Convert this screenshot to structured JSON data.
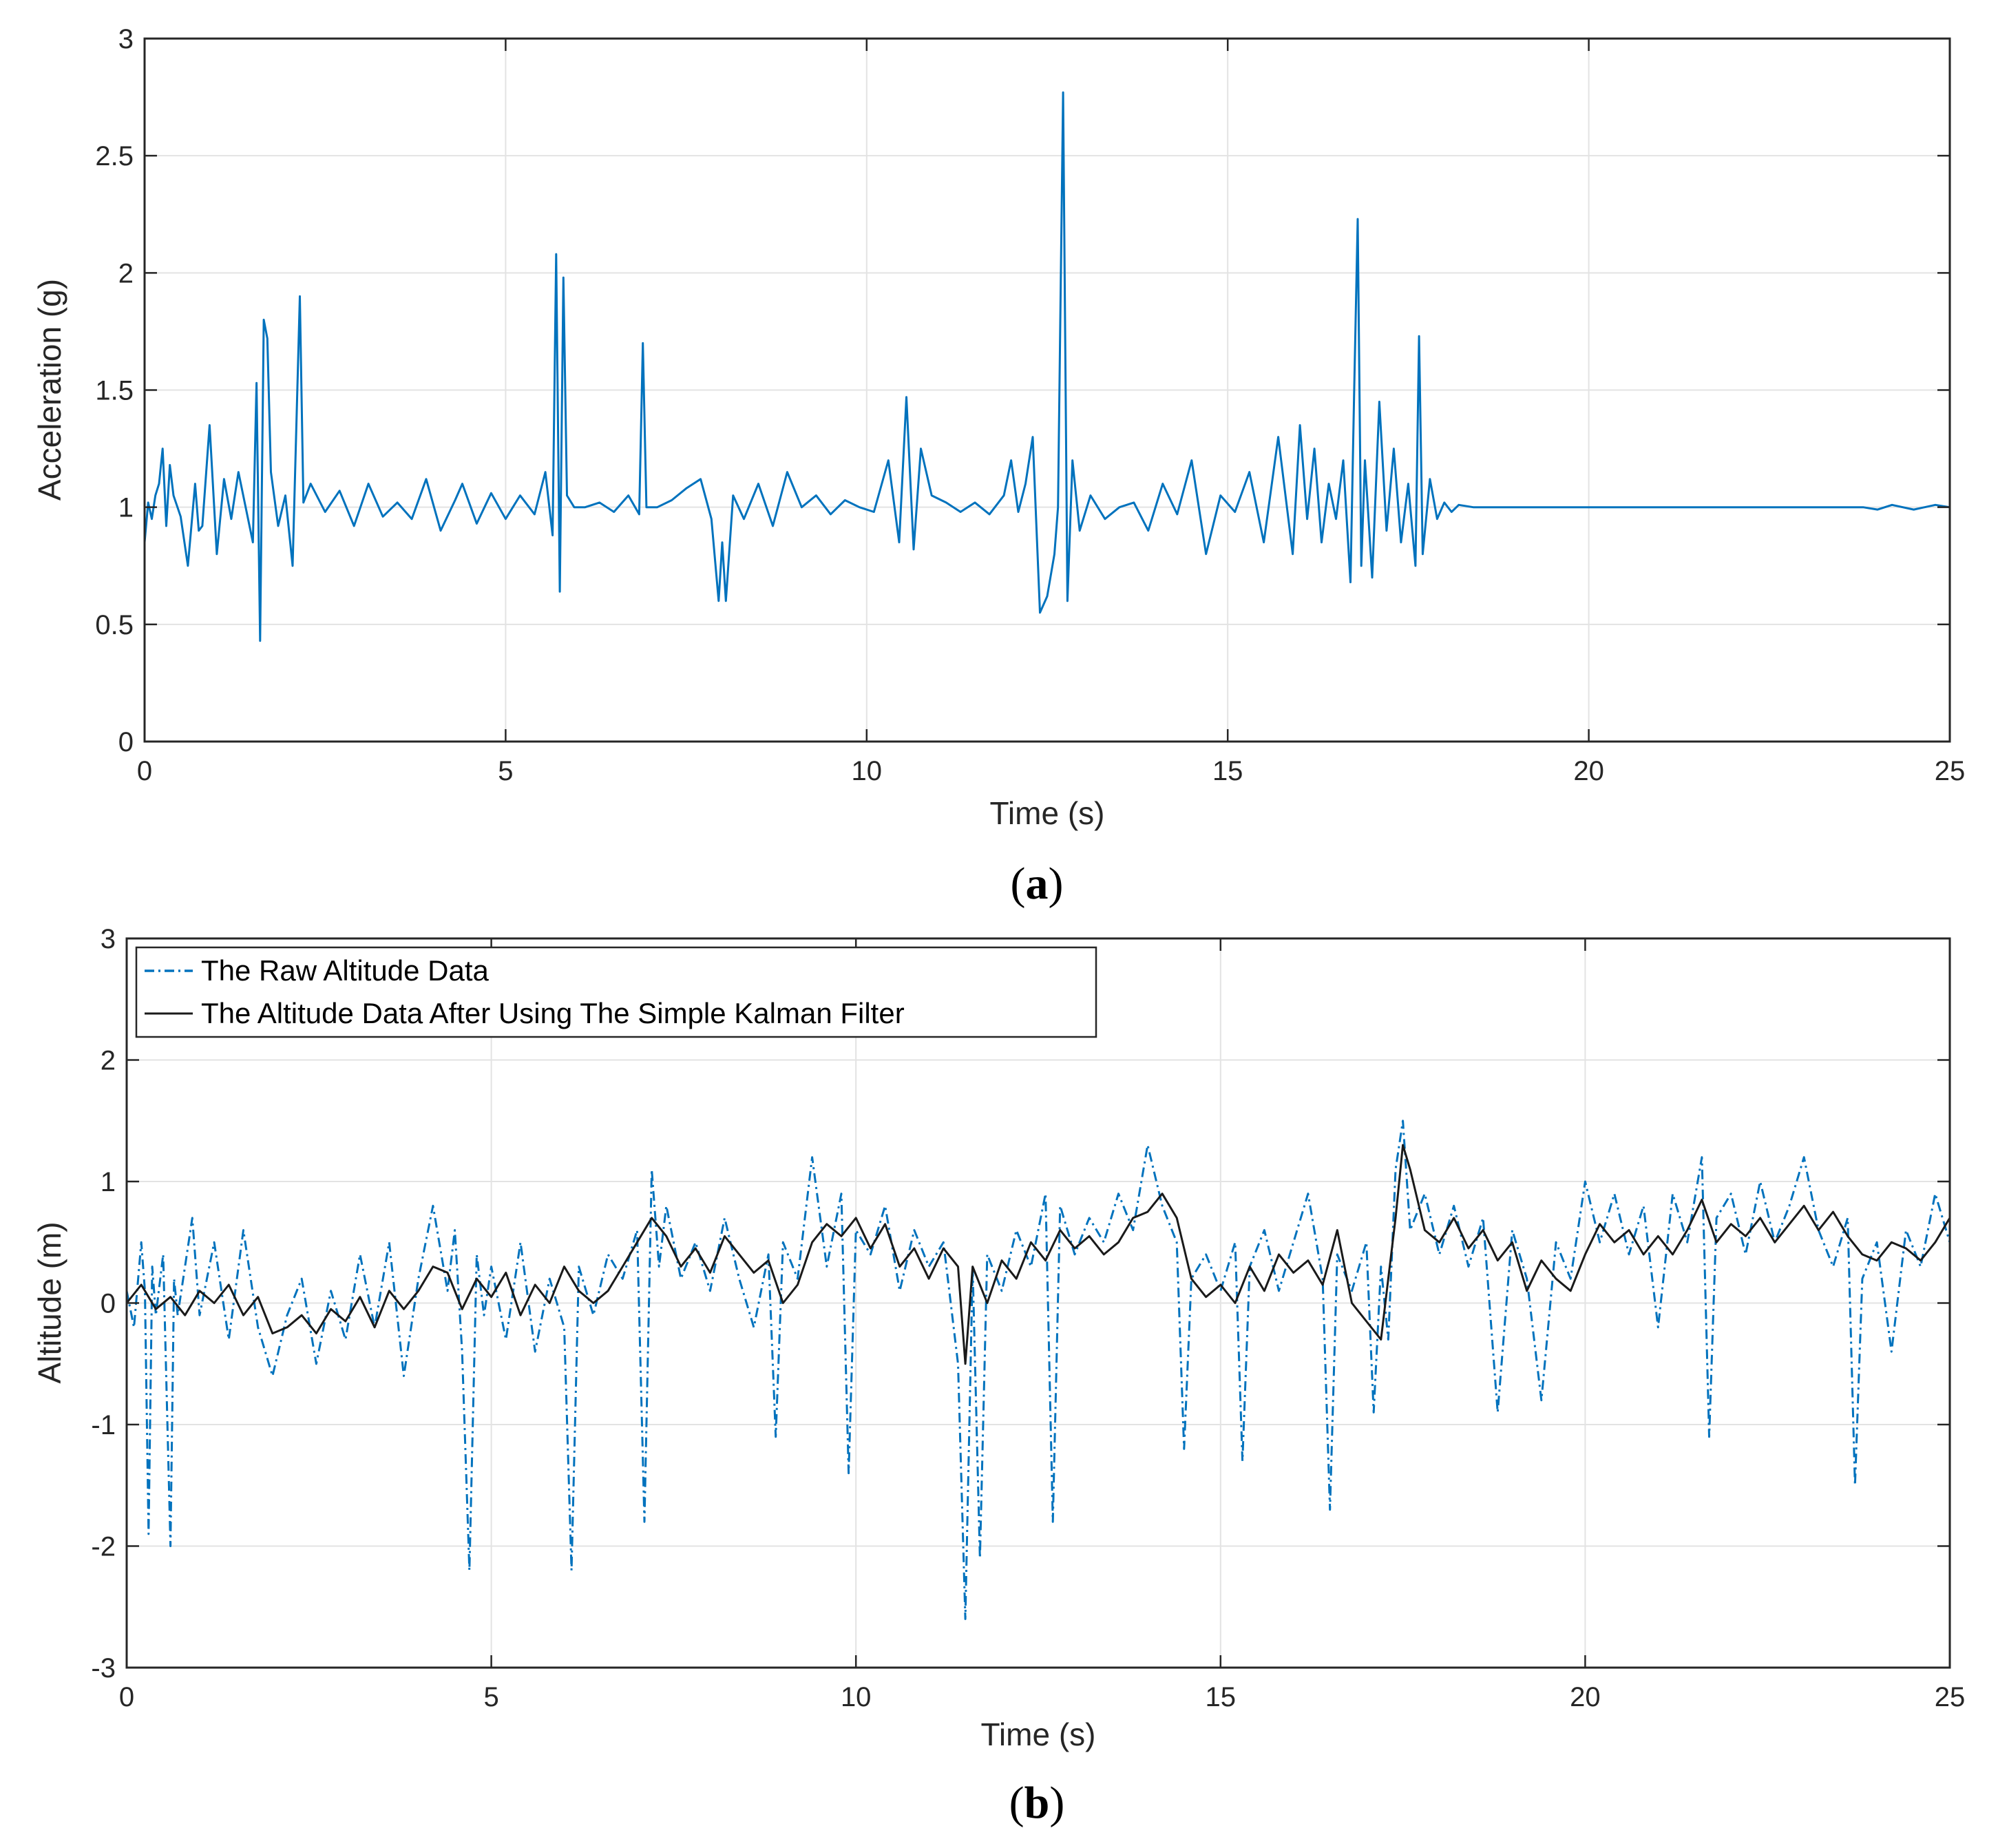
{
  "chart_data": [
    {
      "panel": "a",
      "type": "line",
      "title": "",
      "xlabel": "Time (s)",
      "ylabel": "Acceleration (g)",
      "xlim": [
        0,
        25
      ],
      "ylim": [
        0,
        3
      ],
      "xticks": [
        "0",
        "5",
        "10",
        "15",
        "20",
        "25"
      ],
      "yticks": [
        "0",
        "0.5",
        "1",
        "1.5",
        "2",
        "2.5",
        "3"
      ],
      "grid": true,
      "legend": null,
      "series": [
        {
          "name": "Acceleration",
          "color": "#0072BD",
          "style": "solid",
          "x": [
            0,
            0.05,
            0.1,
            0.15,
            0.2,
            0.25,
            0.3,
            0.35,
            0.4,
            0.5,
            0.6,
            0.7,
            0.75,
            0.8,
            0.9,
            1.0,
            1.1,
            1.2,
            1.3,
            1.4,
            1.5,
            1.55,
            1.6,
            1.65,
            1.7,
            1.75,
            1.85,
            1.95,
            2.05,
            2.15,
            2.2,
            2.3,
            2.5,
            2.7,
            2.9,
            3.1,
            3.3,
            3.5,
            3.7,
            3.9,
            4.1,
            4.3,
            4.4,
            4.6,
            4.8,
            5.0,
            5.2,
            5.4,
            5.55,
            5.65,
            5.7,
            5.75,
            5.8,
            5.85,
            5.95,
            6.1,
            6.3,
            6.5,
            6.7,
            6.85,
            6.9,
            6.95,
            7.1,
            7.3,
            7.5,
            7.7,
            7.85,
            7.95,
            8.0,
            8.05,
            8.15,
            8.3,
            8.5,
            8.7,
            8.9,
            9.1,
            9.3,
            9.5,
            9.7,
            9.9,
            10.1,
            10.3,
            10.45,
            10.55,
            10.65,
            10.75,
            10.9,
            11.1,
            11.3,
            11.5,
            11.7,
            11.9,
            12.0,
            12.1,
            12.2,
            12.3,
            12.4,
            12.5,
            12.6,
            12.65,
            12.72,
            12.78,
            12.85,
            12.95,
            13.1,
            13.3,
            13.5,
            13.7,
            13.9,
            14.1,
            14.3,
            14.5,
            14.7,
            14.9,
            15.1,
            15.3,
            15.5,
            15.7,
            15.9,
            16.0,
            16.1,
            16.2,
            16.3,
            16.4,
            16.5,
            16.6,
            16.7,
            16.75,
            16.8,
            16.85,
            16.9,
            17.0,
            17.1,
            17.2,
            17.3,
            17.4,
            17.5,
            17.6,
            17.65,
            17.7,
            17.8,
            17.9,
            18.0,
            18.1,
            18.2,
            18.4,
            19.0,
            20.0,
            21.0,
            22.0,
            23.0,
            23.5,
            23.8,
            24.0,
            24.2,
            24.5,
            24.8,
            25.0
          ],
          "y": [
            0.85,
            1.02,
            0.95,
            1.05,
            1.1,
            1.25,
            0.92,
            1.18,
            1.05,
            0.96,
            0.75,
            1.1,
            0.9,
            0.92,
            1.35,
            0.8,
            1.12,
            0.95,
            1.15,
            1.0,
            0.85,
            1.53,
            0.43,
            1.8,
            1.72,
            1.15,
            0.92,
            1.05,
            0.75,
            1.9,
            1.02,
            1.1,
            0.98,
            1.07,
            0.92,
            1.1,
            0.96,
            1.02,
            0.95,
            1.12,
            0.9,
            1.03,
            1.1,
            0.93,
            1.06,
            0.95,
            1.05,
            0.97,
            1.15,
            0.88,
            2.08,
            0.64,
            1.98,
            1.05,
            1.0,
            1.0,
            1.02,
            0.98,
            1.05,
            0.97,
            1.7,
            1.0,
            1.0,
            1.03,
            1.08,
            1.12,
            0.95,
            0.6,
            0.85,
            0.6,
            1.05,
            0.95,
            1.1,
            0.92,
            1.15,
            1.0,
            1.05,
            0.97,
            1.03,
            1.0,
            0.98,
            1.2,
            0.85,
            1.47,
            0.82,
            1.25,
            1.05,
            1.02,
            0.98,
            1.02,
            0.97,
            1.05,
            1.2,
            0.98,
            1.1,
            1.3,
            0.55,
            0.62,
            0.8,
            1.0,
            2.77,
            0.6,
            1.2,
            0.9,
            1.05,
            0.95,
            1.0,
            1.02,
            0.9,
            1.1,
            0.97,
            1.2,
            0.8,
            1.05,
            0.98,
            1.15,
            0.85,
            1.3,
            0.8,
            1.35,
            0.95,
            1.25,
            0.85,
            1.1,
            0.95,
            1.2,
            0.68,
            1.47,
            2.23,
            0.75,
            1.2,
            0.7,
            1.45,
            0.9,
            1.25,
            0.85,
            1.1,
            0.75,
            1.73,
            0.8,
            1.12,
            0.95,
            1.02,
            0.98,
            1.01,
            1.0,
            1.0,
            1.0,
            1.0,
            1.0,
            1.0,
            1.0,
            1.0,
            0.99,
            1.01,
            0.99,
            1.01,
            1.0
          ]
        }
      ]
    },
    {
      "panel": "b",
      "type": "line",
      "title": "",
      "xlabel": "Time (s)",
      "ylabel": "Altitude (m)",
      "xlim": [
        0,
        25
      ],
      "ylim": [
        -3,
        3
      ],
      "xticks": [
        "0",
        "5",
        "10",
        "15",
        "20",
        "25"
      ],
      "yticks": [
        "-3",
        "-2",
        "-1",
        "0",
        "1",
        "2",
        "3"
      ],
      "grid": true,
      "legend": "top-left",
      "series": [
        {
          "name": "The Raw Altitude Data",
          "color": "#0072BD",
          "style": "dash-dot",
          "x": [
            0,
            0.1,
            0.2,
            0.25,
            0.3,
            0.35,
            0.4,
            0.5,
            0.6,
            0.65,
            0.7,
            0.8,
            0.9,
            1.0,
            1.2,
            1.4,
            1.6,
            1.8,
            2.0,
            2.2,
            2.4,
            2.6,
            2.8,
            3.0,
            3.2,
            3.4,
            3.6,
            3.8,
            4.0,
            4.2,
            4.4,
            4.5,
            4.6,
            4.7,
            4.8,
            4.9,
            5.0,
            5.2,
            5.4,
            5.6,
            5.8,
            6.0,
            6.1,
            6.2,
            6.4,
            6.6,
            6.8,
            7.0,
            7.1,
            7.2,
            7.3,
            7.4,
            7.6,
            7.8,
            8.0,
            8.2,
            8.4,
            8.6,
            8.8,
            8.9,
            9.0,
            9.2,
            9.4,
            9.6,
            9.8,
            9.9,
            10.0,
            10.2,
            10.4,
            10.6,
            10.8,
            11.0,
            11.2,
            11.4,
            11.5,
            11.6,
            11.7,
            11.8,
            12.0,
            12.2,
            12.4,
            12.6,
            12.7,
            12.8,
            13.0,
            13.2,
            13.4,
            13.6,
            13.8,
            14.0,
            14.2,
            14.4,
            14.5,
            14.6,
            14.8,
            15.0,
            15.2,
            15.3,
            15.4,
            15.6,
            15.8,
            16.0,
            16.2,
            16.4,
            16.5,
            16.6,
            16.8,
            17.0,
            17.1,
            17.2,
            17.3,
            17.4,
            17.5,
            17.6,
            17.8,
            18.0,
            18.2,
            18.4,
            18.6,
            18.8,
            19.0,
            19.2,
            19.4,
            19.6,
            19.8,
            20.0,
            20.2,
            20.4,
            20.6,
            20.8,
            21.0,
            21.2,
            21.4,
            21.6,
            21.7,
            21.8,
            22.0,
            22.2,
            22.4,
            22.6,
            22.8,
            23.0,
            23.2,
            23.4,
            23.6,
            23.7,
            23.8,
            24.0,
            24.2,
            24.4,
            24.6,
            24.8,
            25.0
          ],
          "y": [
            0.1,
            -0.2,
            0.5,
            0.1,
            -1.9,
            0.3,
            -0.1,
            0.4,
            -2.0,
            0.2,
            -0.1,
            0.3,
            0.7,
            -0.1,
            0.5,
            -0.3,
            0.6,
            -0.2,
            -0.6,
            -0.1,
            0.2,
            -0.5,
            0.1,
            -0.3,
            0.4,
            -0.2,
            0.5,
            -0.6,
            0.2,
            0.8,
            0.1,
            0.6,
            -0.4,
            -2.2,
            0.4,
            -0.1,
            0.3,
            -0.3,
            0.5,
            -0.4,
            0.2,
            -0.2,
            -2.2,
            0.3,
            -0.1,
            0.4,
            0.2,
            0.6,
            -1.8,
            1.1,
            0.3,
            0.8,
            0.2,
            0.5,
            0.1,
            0.7,
            0.2,
            -0.2,
            0.4,
            -1.1,
            0.5,
            0.2,
            1.2,
            0.3,
            0.9,
            -1.4,
            0.6,
            0.4,
            0.8,
            0.1,
            0.6,
            0.3,
            0.5,
            -0.5,
            -2.6,
            0.3,
            -2.1,
            0.4,
            0.1,
            0.6,
            0.3,
            0.9,
            -1.8,
            0.8,
            0.4,
            0.7,
            0.5,
            0.9,
            0.6,
            1.3,
            0.8,
            0.5,
            -1.2,
            0.2,
            0.4,
            0.1,
            0.5,
            -1.3,
            0.3,
            0.6,
            0.1,
            0.5,
            0.9,
            0.2,
            -1.7,
            0.4,
            0.1,
            0.5,
            -0.9,
            0.3,
            -0.3,
            1.1,
            1.5,
            0.6,
            0.9,
            0.4,
            0.8,
            0.3,
            0.7,
            -0.9,
            0.6,
            0.2,
            -0.8,
            0.5,
            0.2,
            1.0,
            0.5,
            0.9,
            0.4,
            0.8,
            -0.2,
            0.9,
            0.5,
            1.2,
            -1.1,
            0.7,
            0.9,
            0.4,
            1.0,
            0.5,
            0.8,
            1.2,
            0.6,
            0.3,
            0.7,
            -1.5,
            0.2,
            0.5,
            -0.4,
            0.6,
            0.3,
            0.9,
            0.5
          ],
          "legend_label": "The Raw Altitude Data"
        },
        {
          "name": "The Altitude Data After Using The Simple Kalman Filter",
          "color": "#1a1a1a",
          "style": "solid",
          "x": [
            0,
            0.2,
            0.4,
            0.6,
            0.8,
            1.0,
            1.2,
            1.4,
            1.6,
            1.8,
            2.0,
            2.2,
            2.4,
            2.6,
            2.8,
            3.0,
            3.2,
            3.4,
            3.6,
            3.8,
            4.0,
            4.2,
            4.4,
            4.6,
            4.8,
            5.0,
            5.2,
            5.4,
            5.6,
            5.8,
            6.0,
            6.2,
            6.4,
            6.6,
            6.8,
            7.0,
            7.2,
            7.4,
            7.6,
            7.8,
            8.0,
            8.2,
            8.4,
            8.6,
            8.8,
            9.0,
            9.2,
            9.4,
            9.6,
            9.8,
            10.0,
            10.2,
            10.4,
            10.6,
            10.8,
            11.0,
            11.2,
            11.4,
            11.5,
            11.6,
            11.8,
            12.0,
            12.2,
            12.4,
            12.6,
            12.8,
            13.0,
            13.2,
            13.4,
            13.6,
            13.8,
            14.0,
            14.2,
            14.4,
            14.6,
            14.8,
            15.0,
            15.2,
            15.4,
            15.6,
            15.8,
            16.0,
            16.2,
            16.4,
            16.6,
            16.8,
            17.0,
            17.2,
            17.4,
            17.5,
            17.6,
            17.8,
            18.0,
            18.2,
            18.4,
            18.6,
            18.8,
            19.0,
            19.2,
            19.4,
            19.6,
            19.8,
            20.0,
            20.2,
            20.4,
            20.6,
            20.8,
            21.0,
            21.2,
            21.4,
            21.6,
            21.8,
            22.0,
            22.2,
            22.4,
            22.6,
            22.8,
            23.0,
            23.2,
            23.4,
            23.6,
            23.8,
            24.0,
            24.2,
            24.4,
            24.6,
            24.8,
            25.0
          ],
          "y": [
            0.0,
            0.15,
            -0.05,
            0.05,
            -0.1,
            0.1,
            0.0,
            0.15,
            -0.1,
            0.05,
            -0.25,
            -0.2,
            -0.1,
            -0.25,
            -0.05,
            -0.15,
            0.05,
            -0.2,
            0.1,
            -0.05,
            0.1,
            0.3,
            0.25,
            -0.05,
            0.2,
            0.05,
            0.25,
            -0.1,
            0.15,
            0.0,
            0.3,
            0.1,
            0.0,
            0.1,
            0.3,
            0.5,
            0.7,
            0.55,
            0.3,
            0.45,
            0.25,
            0.55,
            0.4,
            0.25,
            0.35,
            0.0,
            0.15,
            0.5,
            0.65,
            0.55,
            0.7,
            0.45,
            0.65,
            0.3,
            0.45,
            0.2,
            0.45,
            0.3,
            -0.5,
            0.3,
            0.0,
            0.35,
            0.2,
            0.5,
            0.35,
            0.6,
            0.45,
            0.55,
            0.4,
            0.5,
            0.7,
            0.75,
            0.9,
            0.7,
            0.2,
            0.05,
            0.15,
            0.0,
            0.3,
            0.1,
            0.4,
            0.25,
            0.35,
            0.15,
            0.6,
            0.0,
            -0.15,
            -0.3,
            0.7,
            1.3,
            1.1,
            0.6,
            0.5,
            0.7,
            0.45,
            0.6,
            0.35,
            0.5,
            0.1,
            0.35,
            0.2,
            0.1,
            0.4,
            0.65,
            0.5,
            0.6,
            0.4,
            0.55,
            0.4,
            0.6,
            0.85,
            0.5,
            0.65,
            0.55,
            0.7,
            0.5,
            0.65,
            0.8,
            0.6,
            0.75,
            0.55,
            0.4,
            0.35,
            0.5,
            0.45,
            0.35,
            0.5,
            0.7
          ],
          "legend_label": "The Altitude Data After Using The Simple Kalman Filter"
        }
      ]
    }
  ],
  "panels": {
    "a": {
      "label_open": "(",
      "label_letter": "a",
      "label_close": ")"
    },
    "b": {
      "label_open": "(",
      "label_letter": "b",
      "label_close": ")"
    }
  }
}
